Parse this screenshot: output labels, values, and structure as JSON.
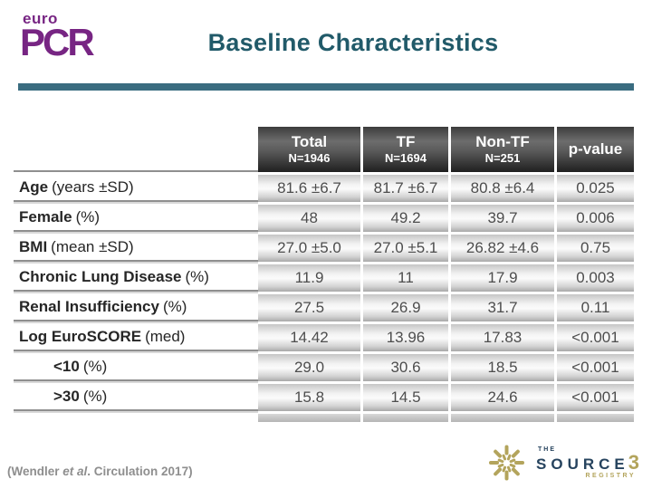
{
  "logo": {
    "top": "euro",
    "main": "PCR",
    "brand_color": "#772583"
  },
  "title": {
    "text": "Baseline Characteristics",
    "color": "#215a69"
  },
  "divider_color": "#3a6c80",
  "table": {
    "columns": [
      {
        "label": "Total",
        "n": "N=1946"
      },
      {
        "label": "TF",
        "n": "N=1694"
      },
      {
        "label": "Non-TF",
        "n": "N=251"
      },
      {
        "label": "p-value"
      }
    ],
    "rows": [
      {
        "label_bold": "Age",
        "label_rest": "(years ±SD)",
        "indent": false,
        "values": [
          "81.6 ±6.7",
          "81.7 ±6.7",
          "80.8 ±6.4",
          "0.025"
        ]
      },
      {
        "label_bold": "Female",
        "label_rest": "(%)",
        "indent": false,
        "values": [
          "48",
          "49.2",
          "39.7",
          "0.006"
        ]
      },
      {
        "label_bold": "BMI",
        "label_rest": "(mean ±SD)",
        "indent": false,
        "values": [
          "27.0 ±5.0",
          "27.0 ±5.1",
          "26.82 ±4.6",
          "0.75"
        ]
      },
      {
        "label_bold": "Chronic Lung Disease",
        "label_rest": "(%)",
        "indent": false,
        "values": [
          "11.9",
          "11",
          "17.9",
          "0.003"
        ]
      },
      {
        "label_bold": "Renal Insufficiency",
        "label_rest": "(%)",
        "indent": false,
        "values": [
          "27.5",
          "26.9",
          "31.7",
          "0.11"
        ]
      },
      {
        "label_bold": "Log EuroSCORE",
        "label_rest": "(med)",
        "indent": false,
        "values": [
          "14.42",
          "13.96",
          "17.83",
          "<0.001"
        ]
      },
      {
        "label_bold": "<10",
        "label_rest": "(%)",
        "indent": true,
        "values": [
          "29.0",
          "30.6",
          "18.5",
          "<0.001"
        ]
      },
      {
        "label_bold": ">30",
        "label_rest": "(%)",
        "indent": true,
        "values": [
          "15.8",
          "14.5",
          "24.6",
          "<0.001"
        ]
      }
    ]
  },
  "citation": {
    "prefix": "(Wendler ",
    "italic": "et al",
    "suffix": ". Circulation 2017)"
  },
  "source_logo": {
    "icon": "starburst-icon",
    "the": "THE",
    "name": "SOURCE",
    "number": "3",
    "registry": "REGISTRY",
    "navy": "#26435e",
    "olive": "#b3a45c"
  }
}
